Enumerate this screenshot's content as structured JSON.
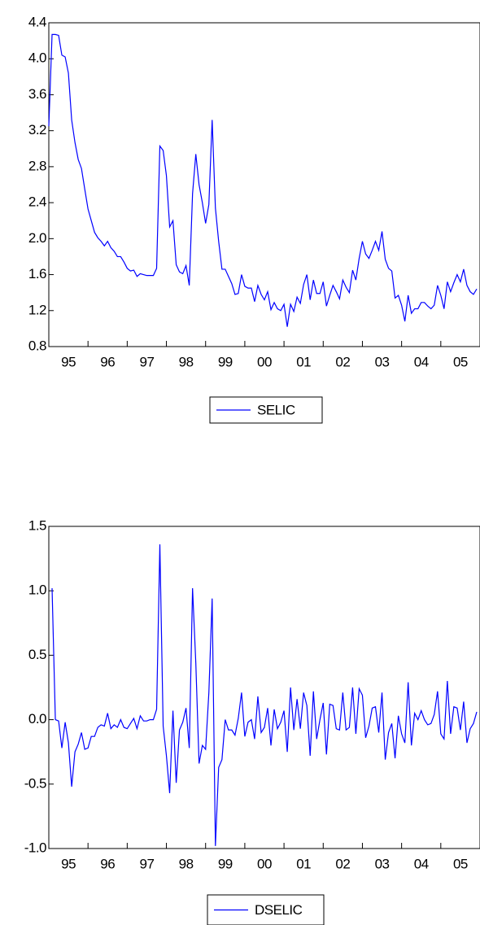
{
  "chart_data": [
    {
      "type": "line",
      "x": [
        95,
        95.083,
        95.167,
        95.25,
        95.333,
        95.417,
        95.5,
        95.583,
        95.667,
        95.75,
        95.833,
        95.917,
        96,
        96.083,
        96.167,
        96.25,
        96.333,
        96.417,
        96.5,
        96.583,
        96.667,
        96.75,
        96.833,
        96.917,
        97,
        97.083,
        97.167,
        97.25,
        97.333,
        97.417,
        97.5,
        97.583,
        97.667,
        97.75,
        97.833,
        97.917,
        98,
        98.083,
        98.167,
        98.25,
        98.333,
        98.417,
        98.5,
        98.583,
        98.667,
        98.75,
        98.833,
        98.917,
        99,
        99.083,
        99.167,
        99.25,
        99.333,
        99.417,
        99.5,
        99.583,
        99.667,
        99.75,
        99.833,
        99.917,
        100,
        100.083,
        100.167,
        100.25,
        100.333,
        100.417,
        100.5,
        100.583,
        100.667,
        100.75,
        100.833,
        100.917,
        101,
        101.083,
        101.167,
        101.25,
        101.333,
        101.417,
        101.5,
        101.583,
        101.667,
        101.75,
        101.833,
        101.917,
        102,
        102.083,
        102.167,
        102.25,
        102.333,
        102.417,
        102.5,
        102.583,
        102.667,
        102.75,
        102.833,
        102.917,
        103,
        103.083,
        103.167,
        103.25,
        103.333,
        103.417,
        103.5,
        103.583,
        103.667,
        103.75,
        103.833,
        103.917,
        104,
        104.083,
        104.167,
        104.25,
        104.333,
        104.417,
        104.5,
        104.583,
        104.667,
        104.75,
        104.833,
        104.917,
        105,
        105.083,
        105.167,
        105.25,
        105.333,
        105.417,
        105.5,
        105.583,
        105.667,
        105.75,
        105.833,
        105.917
      ],
      "series": [
        {
          "name": "SELIC",
          "color": "#0000ff",
          "values": [
            3.25,
            4.27,
            4.27,
            4.26,
            4.04,
            4.02,
            3.84,
            3.32,
            3.07,
            2.88,
            2.78,
            2.55,
            2.33,
            2.2,
            2.07,
            2.01,
            1.97,
            1.92,
            1.97,
            1.9,
            1.86,
            1.8,
            1.8,
            1.74,
            1.67,
            1.64,
            1.65,
            1.58,
            1.61,
            1.6,
            1.59,
            1.59,
            1.59,
            1.67,
            3.03,
            2.98,
            2.7,
            2.13,
            2.2,
            1.71,
            1.63,
            1.61,
            1.7,
            1.48,
            2.5,
            2.94,
            2.6,
            2.4,
            2.17,
            2.38,
            3.32,
            2.34,
            1.97,
            1.66,
            1.66,
            1.58,
            1.5,
            1.38,
            1.39,
            1.6,
            1.47,
            1.45,
            1.45,
            1.3,
            1.48,
            1.38,
            1.32,
            1.41,
            1.21,
            1.29,
            1.22,
            1.2,
            1.27,
            1.02,
            1.27,
            1.19,
            1.35,
            1.28,
            1.49,
            1.6,
            1.32,
            1.54,
            1.39,
            1.39,
            1.52,
            1.25,
            1.37,
            1.48,
            1.41,
            1.33,
            1.54,
            1.46,
            1.4,
            1.65,
            1.54,
            1.78,
            1.97,
            1.83,
            1.78,
            1.87,
            1.97,
            1.87,
            2.08,
            1.77,
            1.67,
            1.64,
            1.34,
            1.37,
            1.26,
            1.08,
            1.37,
            1.17,
            1.22,
            1.22,
            1.29,
            1.29,
            1.25,
            1.22,
            1.26,
            1.48,
            1.37,
            1.22,
            1.52,
            1.41,
            1.51,
            1.6,
            1.52,
            1.66,
            1.48,
            1.41,
            1.38,
            1.44
          ]
        }
      ],
      "xlim": [
        95,
        106
      ],
      "xticks": [
        {
          "value": 95,
          "label": "95"
        },
        {
          "value": 96,
          "label": "96"
        },
        {
          "value": 97,
          "label": "97"
        },
        {
          "value": 98,
          "label": "98"
        },
        {
          "value": 99,
          "label": "99"
        },
        {
          "value": 100,
          "label": "00"
        },
        {
          "value": 101,
          "label": "01"
        },
        {
          "value": 102,
          "label": "02"
        },
        {
          "value": 103,
          "label": "03"
        },
        {
          "value": 104,
          "label": "04"
        },
        {
          "value": 105,
          "label": "05"
        }
      ],
      "ylim": [
        0.8,
        4.4
      ],
      "yticks": [
        0.8,
        1.2,
        1.6,
        {
          "value": 2,
          "label": "2.0"
        },
        2.4,
        2.8,
        3.2,
        3.6,
        {
          "value": 4,
          "label": "4.0"
        },
        4.4
      ]
    },
    {
      "type": "line",
      "x": [
        95,
        95.083,
        95.167,
        95.25,
        95.333,
        95.417,
        95.5,
        95.583,
        95.667,
        95.75,
        95.833,
        95.917,
        96,
        96.083,
        96.167,
        96.25,
        96.333,
        96.417,
        96.5,
        96.583,
        96.667,
        96.75,
        96.833,
        96.917,
        97,
        97.083,
        97.167,
        97.25,
        97.333,
        97.417,
        97.5,
        97.583,
        97.667,
        97.75,
        97.833,
        97.917,
        98,
        98.083,
        98.167,
        98.25,
        98.333,
        98.417,
        98.5,
        98.583,
        98.667,
        98.75,
        98.833,
        98.917,
        99,
        99.083,
        99.167,
        99.25,
        99.333,
        99.417,
        99.5,
        99.583,
        99.667,
        99.75,
        99.833,
        99.917,
        100,
        100.083,
        100.167,
        100.25,
        100.333,
        100.417,
        100.5,
        100.583,
        100.667,
        100.75,
        100.833,
        100.917,
        101,
        101.083,
        101.167,
        101.25,
        101.333,
        101.417,
        101.5,
        101.583,
        101.667,
        101.75,
        101.833,
        101.917,
        102,
        102.083,
        102.167,
        102.25,
        102.333,
        102.417,
        102.5,
        102.583,
        102.667,
        102.75,
        102.833,
        102.917,
        103,
        103.083,
        103.167,
        103.25,
        103.333,
        103.417,
        103.5,
        103.583,
        103.667,
        103.75,
        103.833,
        103.917,
        104,
        104.083,
        104.167,
        104.25,
        104.333,
        104.417,
        104.5,
        104.583,
        104.667,
        104.75,
        104.833,
        104.917,
        105,
        105.083,
        105.167,
        105.25,
        105.333,
        105.417,
        105.5,
        105.583,
        105.667,
        105.75,
        105.833,
        105.917
      ],
      "series": [
        {
          "name": "DSELIC",
          "color": "#0000ff",
          "values": [
            null,
            1.02,
            0,
            -0.01,
            -0.22,
            -0.02,
            -0.18,
            -0.52,
            -0.25,
            -0.19,
            -0.1,
            -0.23,
            -0.22,
            -0.13,
            -0.13,
            -0.06,
            -0.04,
            -0.05,
            0.05,
            -0.07,
            -0.04,
            -0.06,
            0,
            -0.06,
            -0.07,
            -0.03,
            0.01,
            -0.07,
            0.03,
            -0.01,
            -0.01,
            0,
            0,
            0.08,
            1.36,
            -0.05,
            -0.28,
            -0.57,
            0.07,
            -0.49,
            -0.08,
            -0.02,
            0.09,
            -0.22,
            1.02,
            0.44,
            -0.34,
            -0.2,
            -0.23,
            0.21,
            0.94,
            -0.98,
            -0.37,
            -0.31,
            0,
            -0.08,
            -0.08,
            -0.12,
            0.01,
            0.21,
            -0.13,
            -0.02,
            0,
            -0.15,
            0.18,
            -0.1,
            -0.06,
            0.09,
            -0.2,
            0.08,
            -0.07,
            -0.02,
            0.07,
            -0.25,
            0.25,
            -0.08,
            0.16,
            -0.07,
            0.21,
            0.11,
            -0.28,
            0.22,
            -0.15,
            0,
            0.13,
            -0.27,
            0.12,
            0.11,
            -0.07,
            -0.08,
            0.21,
            -0.08,
            -0.06,
            0.25,
            -0.11,
            0.24,
            0.19,
            -0.14,
            -0.05,
            0.09,
            0.1,
            -0.1,
            0.21,
            -0.31,
            -0.1,
            -0.03,
            -0.3,
            0.03,
            -0.11,
            -0.18,
            0.29,
            -0.2,
            0.05,
            0,
            0.07,
            0,
            -0.04,
            -0.03,
            0.04,
            0.22,
            -0.11,
            -0.15,
            0.3,
            -0.11,
            0.1,
            0.09,
            -0.08,
            0.14,
            -0.18,
            -0.07,
            -0.03,
            0.06
          ]
        }
      ],
      "xlim": [
        95,
        106
      ],
      "xticks": [
        {
          "value": 95,
          "label": "95"
        },
        {
          "value": 96,
          "label": "96"
        },
        {
          "value": 97,
          "label": "97"
        },
        {
          "value": 98,
          "label": "98"
        },
        {
          "value": 99,
          "label": "99"
        },
        {
          "value": 100,
          "label": "00"
        },
        {
          "value": 101,
          "label": "01"
        },
        {
          "value": 102,
          "label": "02"
        },
        {
          "value": 103,
          "label": "03"
        },
        {
          "value": 104,
          "label": "04"
        },
        {
          "value": 105,
          "label": "05"
        }
      ],
      "ylim": [
        -1,
        1.5
      ],
      "yticks": [
        {
          "value": -1,
          "label": "-1.0"
        },
        -0.5,
        {
          "value": 0,
          "label": "0.0"
        },
        0.5,
        {
          "value": 1,
          "label": "1.0"
        },
        1.5
      ]
    }
  ]
}
